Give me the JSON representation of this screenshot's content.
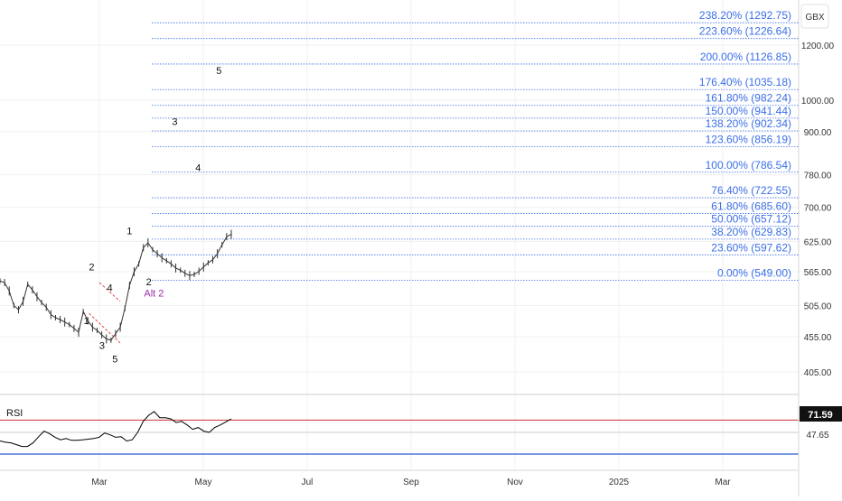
{
  "price_unit": "GBX",
  "indicator": {
    "name": "RSI",
    "value": "71.59",
    "mid_label": "47.65"
  },
  "colors": {
    "fib": "#3a6ee8",
    "channel": "#e34b4b",
    "price": "#333333",
    "rsi_line": "#000000",
    "rsi_upper": "#cc3333",
    "rsi_lower": "#2a5ad6",
    "alt_label": "#9b2aa8",
    "grid": "#f0f0f0",
    "badge_bg": "#111111"
  },
  "chart_data": [
    {
      "type": "line",
      "scale": "log",
      "y_tick_labels": [
        "1200.00",
        "1000.00",
        "900.00",
        "780.00",
        "700.00",
        "625.00",
        "565.00",
        "505.00",
        "455.00",
        "405.00"
      ],
      "x_tick_labels": [
        "Mar",
        "May",
        "Jul",
        "Sep",
        "Nov",
        "2025",
        "Mar"
      ],
      "fib_levels": [
        {
          "label": "238.20% (1292.75)",
          "value": 1292.75
        },
        {
          "label": "223.60% (1226.64)",
          "value": 1226.64
        },
        {
          "label": "200.00% (1126.85)",
          "value": 1126.85
        },
        {
          "label": "176.40% (1035.18)",
          "value": 1035.18
        },
        {
          "label": "161.80% (982.24)",
          "value": 982.24
        },
        {
          "label": "150.00% (941.44)",
          "value": 941.44
        },
        {
          "label": "138.20% (902.34)",
          "value": 902.34
        },
        {
          "label": "123.60% (856.19)",
          "value": 856.19
        },
        {
          "label": "100.00% (786.54)",
          "value": 786.54
        },
        {
          "label": "76.40% (722.55)",
          "value": 722.55
        },
        {
          "label": "61.80% (685.60)",
          "value": 685.6
        },
        {
          "label": "50.00% (657.12)",
          "value": 657.12
        },
        {
          "label": "38.20% (629.83)",
          "value": 629.83
        },
        {
          "label": "23.60% (597.62)",
          "value": 597.62
        },
        {
          "label": "0.00% (549.00)",
          "value": 549.0
        }
      ],
      "price_path": [
        548,
        545,
        530,
        505,
        498,
        512,
        542,
        532,
        520,
        510,
        502,
        490,
        485,
        482,
        478,
        474,
        468,
        462,
        495,
        480,
        470,
        465,
        458,
        452,
        450,
        460,
        470,
        500,
        540,
        565,
        580,
        612,
        622,
        608,
        600,
        592,
        586,
        580,
        572,
        568,
        562,
        558,
        560,
        566,
        574,
        582,
        588,
        600,
        618,
        635,
        640
      ],
      "channel_lines": [
        [
          [
            0.0,
            545
          ],
          [
            0.4,
            512
          ]
        ],
        [
          [
            -0.2,
            492
          ],
          [
            0.4,
            446
          ]
        ]
      ],
      "wave_labels": [
        {
          "text": "1",
          "x": -0.25,
          "y": 475
        },
        {
          "text": "2",
          "x": -0.15,
          "y": 568
        },
        {
          "text": "3",
          "x": 0.05,
          "y": 437
        },
        {
          "text": "4",
          "x": 0.2,
          "y": 530
        },
        {
          "text": "5",
          "x": 0.3,
          "y": 418
        },
        {
          "text": "1",
          "x": 0.58,
          "y": 640
        },
        {
          "text": "2",
          "x": 0.95,
          "y": 540
        },
        {
          "text": "3",
          "x": 1.45,
          "y": 920
        },
        {
          "text": "4",
          "x": 1.9,
          "y": 790
        },
        {
          "text": "5",
          "x": 2.3,
          "y": 1090
        }
      ],
      "annotations": [
        {
          "text": "Alt 2",
          "x": 1.05,
          "y": 520
        }
      ]
    },
    {
      "type": "line",
      "title": "RSI",
      "ylim": [
        0,
        100
      ],
      "levels": [
        70,
        30
      ],
      "values": [
        36,
        34,
        33,
        30,
        27,
        27,
        33,
        43,
        52,
        48,
        42,
        38,
        40,
        37,
        37,
        38,
        39,
        40,
        42,
        49,
        46,
        42,
        43,
        36,
        38,
        50,
        68,
        78,
        84,
        74,
        74,
        72,
        66,
        68,
        62,
        55,
        58,
        52,
        50,
        58,
        62,
        67,
        72
      ]
    }
  ]
}
